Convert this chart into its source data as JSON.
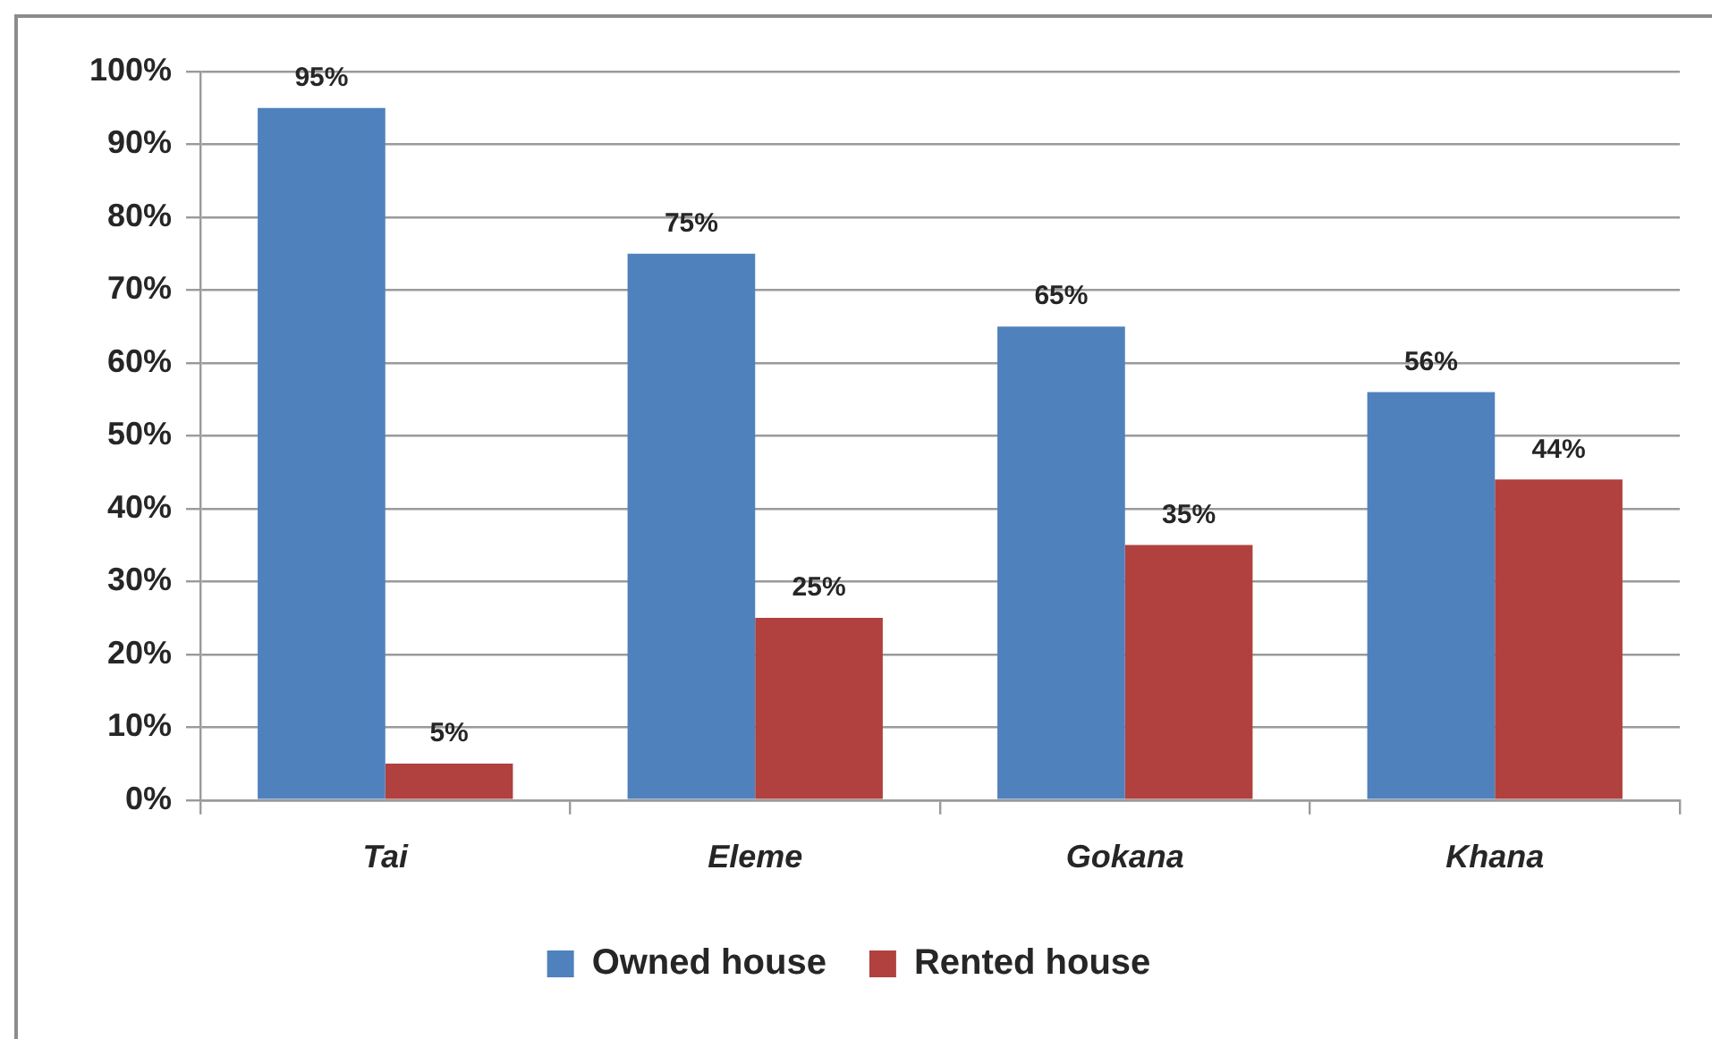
{
  "chart_data": {
    "type": "bar",
    "categories": [
      "Tai",
      "Eleme",
      "Gokana",
      "Khana"
    ],
    "series": [
      {
        "name": "Owned house",
        "color": "#4f81bd",
        "values": [
          95,
          75,
          65,
          56
        ],
        "value_labels": [
          "95%",
          "75%",
          "65%",
          "56%"
        ]
      },
      {
        "name": "Rented house",
        "color": "#b0413e",
        "values": [
          5,
          25,
          35,
          44
        ],
        "value_labels": [
          "5%",
          "25%",
          "35%",
          "44%"
        ]
      }
    ],
    "ylim": [
      0,
      100
    ],
    "yticks": [
      {
        "value": 0,
        "label": "0%"
      },
      {
        "value": 10,
        "label": "10%"
      },
      {
        "value": 20,
        "label": "20%"
      },
      {
        "value": 30,
        "label": "30%"
      },
      {
        "value": 40,
        "label": "40%"
      },
      {
        "value": 50,
        "label": "50%"
      },
      {
        "value": 60,
        "label": "60%"
      },
      {
        "value": 70,
        "label": "70%"
      },
      {
        "value": 80,
        "label": "80%"
      },
      {
        "value": 90,
        "label": "90%"
      },
      {
        "value": 100,
        "label": "100%"
      }
    ],
    "grid": "y",
    "legend": "bottom"
  }
}
